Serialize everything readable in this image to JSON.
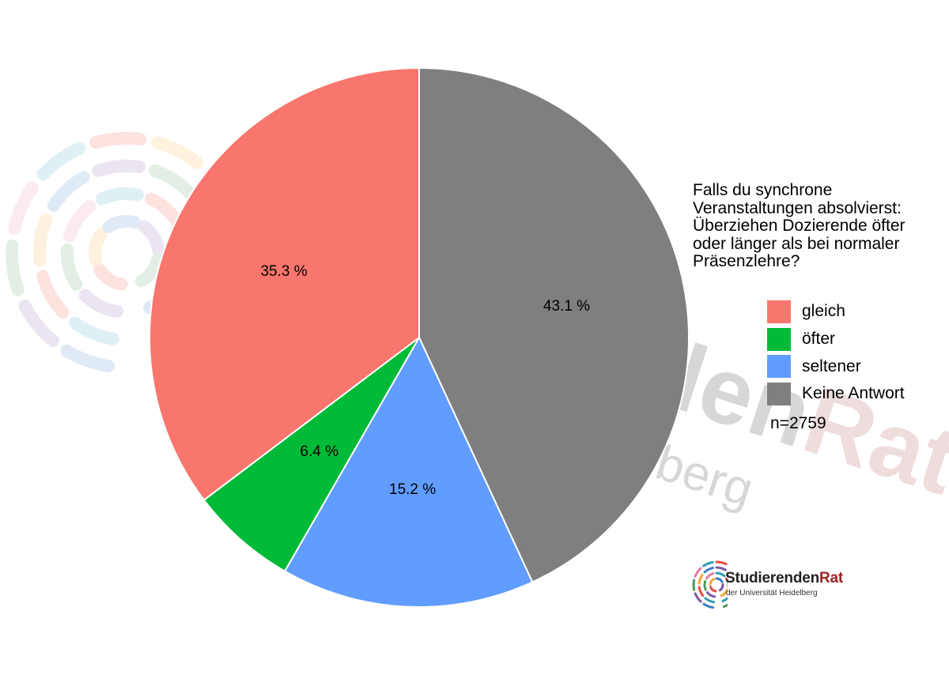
{
  "chart_data": {
    "type": "pie",
    "title": "Falls du synchrone Veranstaltungen absolvierst: Überziehen Dozierende öfter oder länger als bei normaler Präsenzlehre?",
    "title_lines": [
      "Falls du synchrone",
      "Veranstaltungen absolvierst:",
      "Überziehen Dozierende öfter",
      "oder länger als bei normaler",
      "Präsenzlehre?"
    ],
    "categories": [
      "gleich",
      "öfter",
      "seltener",
      "Keine Antwort"
    ],
    "values": [
      35.3,
      6.4,
      15.2,
      43.1
    ],
    "value_labels": [
      "35.3 %",
      "6.4 %",
      "15.2 %",
      "43.1 %"
    ],
    "colors": [
      "#f8766d",
      "#00ba38",
      "#619cff",
      "#7f7f7f"
    ],
    "start_category": "Keine Antwort",
    "direction": "clockwise",
    "legend_position": "right",
    "note": "n=2759"
  },
  "logo": {
    "title_main": "Studierenden",
    "title_accent": "Rat",
    "subtitle": "der Universität Heidelberg"
  }
}
